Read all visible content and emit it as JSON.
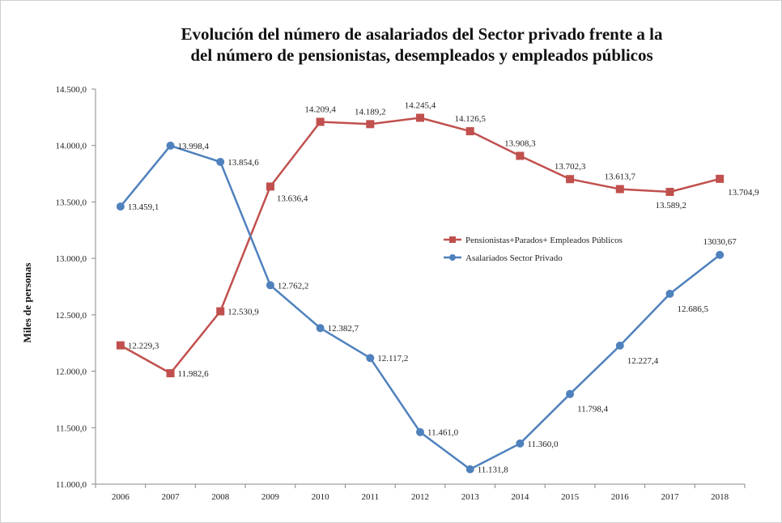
{
  "chart_data": {
    "type": "line",
    "title_lines": [
      "Evolución del número de asalariados del Sector privado frente a la",
      "del número de pensionistas, desempleados y empleados públicos"
    ],
    "xlabel": "",
    "ylabel": "Miles de personas",
    "ylim": [
      11000,
      14500
    ],
    "y_ticks": [
      11000,
      11500,
      12000,
      12500,
      13000,
      13500,
      14000,
      14500
    ],
    "y_tick_labels": [
      "11.000,0",
      "11.500,0",
      "12.000,0",
      "12.500,0",
      "13.000,0",
      "13.500,0",
      "14.000,0",
      "14.500,0"
    ],
    "categories": [
      "2006",
      "2007",
      "2008",
      "2009",
      "2010",
      "2011",
      "2012",
      "2013",
      "2014",
      "2015",
      "2016",
      "2017",
      "2018"
    ],
    "grid": false,
    "legend_position": "right",
    "series": [
      {
        "name": "Pensionistas+Parados+ Empleados Públicos",
        "color": "#c0504d",
        "marker": "square",
        "values": [
          12229.3,
          11982.6,
          12530.9,
          13636.4,
          14209.4,
          14189.2,
          14245.4,
          14126.5,
          13908.3,
          13702.3,
          13613.7,
          13589.2,
          13704.9
        ],
        "labels": [
          "12.229,3",
          "11.982,6",
          "12.530,9",
          "13.636,4",
          "14.209,4",
          "14.189,2",
          "14.245,4",
          "14.126,5",
          "13.908,3",
          "13.702,3",
          "13.613,7",
          "13.589,2",
          "13.704,9"
        ]
      },
      {
        "name": "Asalariados Sector Privado",
        "color": "#4f81bd",
        "marker": "circle",
        "values": [
          13459.1,
          13998.4,
          13854.6,
          12762.2,
          12382.7,
          12117.2,
          11461.0,
          11131.8,
          11360.0,
          11798.4,
          12227.4,
          12686.5,
          13030.67
        ],
        "labels": [
          "13.459,1",
          "13.998,4",
          "13.854,6",
          "12.762,2",
          "12.382,7",
          "12.117,2",
          "11.461,0",
          "11.131,8",
          "11.360,0",
          "11.798,4",
          "12.227,4",
          "12.686,5",
          "13030,67"
        ]
      }
    ]
  }
}
